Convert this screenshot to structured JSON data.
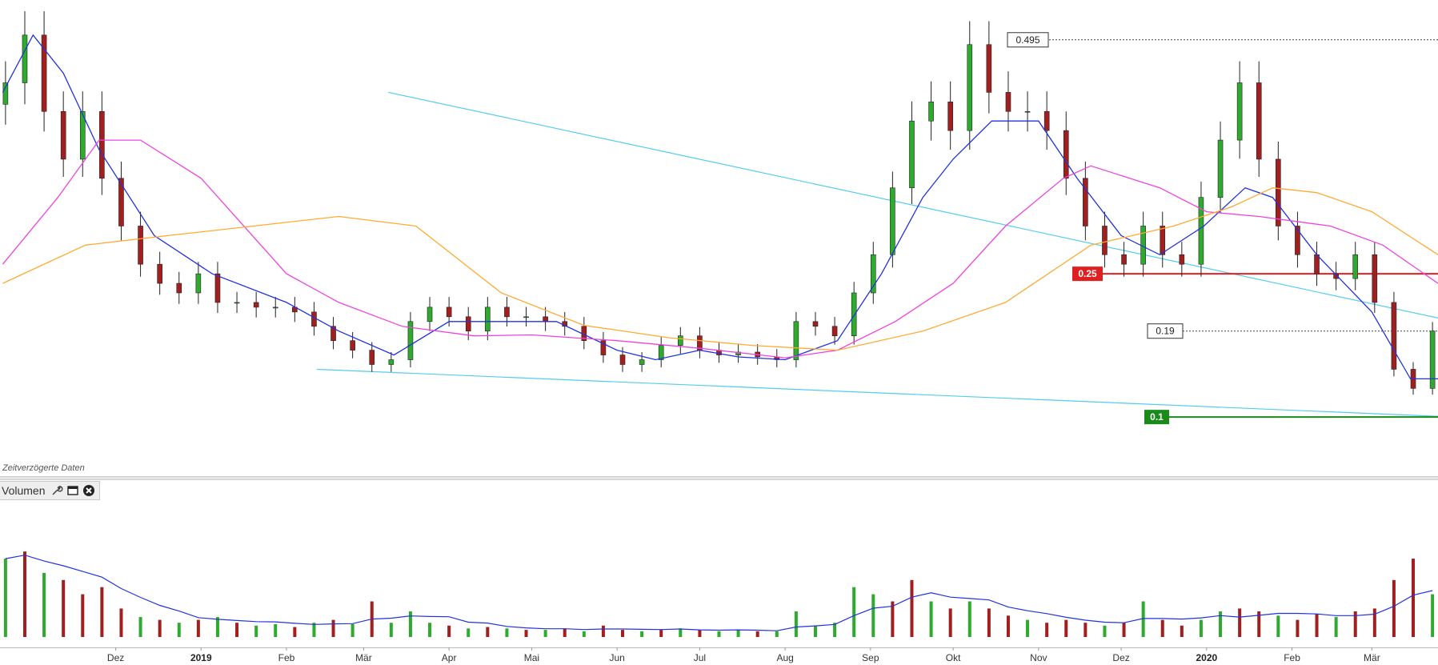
{
  "chart_data": [
    {
      "type": "candlestick",
      "panel": "price",
      "title": "",
      "xlabel": "",
      "ylabel": "",
      "x_range": [
        "2018-10-20",
        "2020-03-25"
      ],
      "ylim": [
        0.08,
        0.53
      ],
      "x_ticks": [
        "Dez",
        "2019",
        "Feb",
        "Mär",
        "Apr",
        "Mai",
        "Jun",
        "Jul",
        "Aug",
        "Sep",
        "Okt",
        "Nov",
        "Dez",
        "2020",
        "Feb",
        "Mär"
      ],
      "grid": false,
      "note": "Zeitverzögerte Daten",
      "price_labels": [
        {
          "value": 0.495,
          "label": "0.495",
          "style": "dotted",
          "color": "#555555"
        },
        {
          "value": 0.25,
          "label": "0.25",
          "style": "solid",
          "color": "#e02020"
        },
        {
          "value": 0.19,
          "label": "0.19",
          "style": "dotted",
          "color": "#555555"
        },
        {
          "value": 0.1,
          "label": "0.1",
          "style": "solid",
          "color": "#1a8a1a"
        }
      ],
      "trendlines": [
        {
          "from": {
            "date": "2019-03-10",
            "value": 0.44
          },
          "to": {
            "date": "2020-03-31",
            "value": 0.2
          },
          "color": "#55ccee",
          "label": ""
        },
        {
          "from": {
            "date": "2019-02-12",
            "value": 0.15
          },
          "to": {
            "date": "2020-03-31",
            "value": 0.1
          },
          "color": "#55ccee",
          "label": ""
        }
      ],
      "moving_averages": [
        {
          "name": "",
          "color": "#2233dd",
          "points": [
            [
              "2018-10-21",
              0.44
            ],
            [
              "2018-11-01",
              0.5
            ],
            [
              "2018-11-12",
              0.46
            ],
            [
              "2018-11-25",
              0.38
            ],
            [
              "2018-12-15",
              0.29
            ],
            [
              "2019-01-05",
              0.25
            ],
            [
              "2019-02-01",
              0.22
            ],
            [
              "2019-02-20",
              0.19
            ],
            [
              "2019-03-12",
              0.165
            ],
            [
              "2019-04-01",
              0.2
            ],
            [
              "2019-04-15",
              0.2
            ],
            [
              "2019-05-10",
              0.2
            ],
            [
              "2019-06-01",
              0.17
            ],
            [
              "2019-06-15",
              0.16
            ],
            [
              "2019-07-01",
              0.17
            ],
            [
              "2019-07-15",
              0.163
            ],
            [
              "2019-08-01",
              0.16
            ],
            [
              "2019-08-20",
              0.18
            ],
            [
              "2019-09-05",
              0.25
            ],
            [
              "2019-09-20",
              0.33
            ],
            [
              "2019-10-01",
              0.37
            ],
            [
              "2019-10-15",
              0.41
            ],
            [
              "2019-11-01",
              0.41
            ],
            [
              "2019-11-15",
              0.35
            ],
            [
              "2019-12-01",
              0.29
            ],
            [
              "2019-12-15",
              0.27
            ],
            [
              "2019-12-31",
              0.3
            ],
            [
              "2020-01-15",
              0.34
            ],
            [
              "2020-01-25",
              0.33
            ],
            [
              "2020-02-10",
              0.27
            ],
            [
              "2020-03-01",
              0.21
            ],
            [
              "2020-03-15",
              0.14
            ],
            [
              "2020-03-25",
              0.14
            ]
          ]
        },
        {
          "name": "",
          "color": "#ee44dd",
          "points": [
            [
              "2018-10-21",
              0.26
            ],
            [
              "2018-11-10",
              0.33
            ],
            [
              "2018-11-25",
              0.39
            ],
            [
              "2018-12-10",
              0.39
            ],
            [
              "2019-01-01",
              0.35
            ],
            [
              "2019-02-01",
              0.25
            ],
            [
              "2019-02-20",
              0.22
            ],
            [
              "2019-03-15",
              0.195
            ],
            [
              "2019-04-10",
              0.185
            ],
            [
              "2019-05-01",
              0.186
            ],
            [
              "2019-06-01",
              0.18
            ],
            [
              "2019-07-01",
              0.172
            ],
            [
              "2019-08-01",
              0.162
            ],
            [
              "2019-08-20",
              0.17
            ],
            [
              "2019-09-10",
              0.2
            ],
            [
              "2019-10-01",
              0.24
            ],
            [
              "2019-10-20",
              0.3
            ],
            [
              "2019-11-10",
              0.35
            ],
            [
              "2019-11-20",
              0.363
            ],
            [
              "2019-12-15",
              0.34
            ],
            [
              "2020-01-01",
              0.315
            ],
            [
              "2020-01-20",
              0.31
            ],
            [
              "2020-02-15",
              0.3
            ],
            [
              "2020-03-05",
              0.28
            ],
            [
              "2020-03-25",
              0.24
            ]
          ]
        },
        {
          "name": "",
          "color": "#ffaa33",
          "points": [
            [
              "2018-10-21",
              0.24
            ],
            [
              "2018-11-20",
              0.28
            ],
            [
              "2018-12-20",
              0.29
            ],
            [
              "2019-01-20",
              0.3
            ],
            [
              "2019-02-20",
              0.31
            ],
            [
              "2019-03-20",
              0.3
            ],
            [
              "2019-04-20",
              0.23
            ],
            [
              "2019-05-20",
              0.196
            ],
            [
              "2019-06-20",
              0.183
            ],
            [
              "2019-07-20",
              0.175
            ],
            [
              "2019-08-20",
              0.17
            ],
            [
              "2019-09-20",
              0.19
            ],
            [
              "2019-10-20",
              0.22
            ],
            [
              "2019-11-20",
              0.28
            ],
            [
              "2019-12-20",
              0.3
            ],
            [
              "2020-01-10",
              0.32
            ],
            [
              "2020-01-25",
              0.34
            ],
            [
              "2020-02-10",
              0.335
            ],
            [
              "2020-03-01",
              0.315
            ],
            [
              "2020-03-25",
              0.27
            ]
          ]
        }
      ],
      "candles_weekly_close": [
        [
          "2018-10-22",
          0.45
        ],
        [
          "2018-10-29",
          0.5
        ],
        [
          "2018-11-05",
          0.42
        ],
        [
          "2018-11-12",
          0.37
        ],
        [
          "2018-11-19",
          0.42
        ],
        [
          "2018-11-26",
          0.35
        ],
        [
          "2018-12-03",
          0.3
        ],
        [
          "2018-12-10",
          0.26
        ],
        [
          "2018-12-17",
          0.24
        ],
        [
          "2018-12-24",
          0.23
        ],
        [
          "2018-12-31",
          0.25
        ],
        [
          "2019-01-07",
          0.22
        ],
        [
          "2019-01-14",
          0.22
        ],
        [
          "2019-01-21",
          0.215
        ],
        [
          "2019-01-28",
          0.215
        ],
        [
          "2019-02-04",
          0.21
        ],
        [
          "2019-02-11",
          0.195
        ],
        [
          "2019-02-18",
          0.18
        ],
        [
          "2019-02-25",
          0.17
        ],
        [
          "2019-03-04",
          0.155
        ],
        [
          "2019-03-11",
          0.16
        ],
        [
          "2019-03-18",
          0.2
        ],
        [
          "2019-03-25",
          0.215
        ],
        [
          "2019-04-01",
          0.205
        ],
        [
          "2019-04-08",
          0.19
        ],
        [
          "2019-04-15",
          0.215
        ],
        [
          "2019-04-22",
          0.205
        ],
        [
          "2019-04-29",
          0.205
        ],
        [
          "2019-05-06",
          0.2
        ],
        [
          "2019-05-13",
          0.195
        ],
        [
          "2019-05-20",
          0.18
        ],
        [
          "2019-05-27",
          0.165
        ],
        [
          "2019-06-03",
          0.155
        ],
        [
          "2019-06-10",
          0.16
        ],
        [
          "2019-06-17",
          0.175
        ],
        [
          "2019-06-24",
          0.185
        ],
        [
          "2019-07-01",
          0.17
        ],
        [
          "2019-07-08",
          0.165
        ],
        [
          "2019-07-15",
          0.168
        ],
        [
          "2019-07-22",
          0.163
        ],
        [
          "2019-07-29",
          0.16
        ],
        [
          "2019-08-05",
          0.2
        ],
        [
          "2019-08-12",
          0.195
        ],
        [
          "2019-08-19",
          0.185
        ],
        [
          "2019-08-26",
          0.23
        ],
        [
          "2019-09-02",
          0.27
        ],
        [
          "2019-09-09",
          0.34
        ],
        [
          "2019-09-16",
          0.41
        ],
        [
          "2019-09-23",
          0.43
        ],
        [
          "2019-09-30",
          0.4
        ],
        [
          "2019-10-07",
          0.49
        ],
        [
          "2019-10-14",
          0.44
        ],
        [
          "2019-10-21",
          0.42
        ],
        [
          "2019-10-28",
          0.42
        ],
        [
          "2019-11-04",
          0.4
        ],
        [
          "2019-11-11",
          0.35
        ],
        [
          "2019-11-18",
          0.3
        ],
        [
          "2019-11-25",
          0.27
        ],
        [
          "2019-12-02",
          0.26
        ],
        [
          "2019-12-09",
          0.3
        ],
        [
          "2019-12-16",
          0.27
        ],
        [
          "2019-12-23",
          0.26
        ],
        [
          "2019-12-30",
          0.33
        ],
        [
          "2020-01-06",
          0.39
        ],
        [
          "2020-01-13",
          0.45
        ],
        [
          "2020-01-20",
          0.37
        ],
        [
          "2020-01-27",
          0.3
        ],
        [
          "2020-02-03",
          0.27
        ],
        [
          "2020-02-10",
          0.25
        ],
        [
          "2020-02-17",
          0.245
        ],
        [
          "2020-02-24",
          0.27
        ],
        [
          "2020-03-02",
          0.22
        ],
        [
          "2020-03-09",
          0.15
        ],
        [
          "2020-03-16",
          0.13
        ],
        [
          "2020-03-23",
          0.19
        ]
      ]
    },
    {
      "type": "bar",
      "panel": "volume",
      "title": "Volumen",
      "xlabel": "",
      "ylabel": "",
      "ylim": [
        0,
        100
      ],
      "x_range": [
        "2018-10-20",
        "2020-03-25"
      ],
      "volume_ma_color": "#2233dd",
      "colors": {
        "up": "#2eaa2e",
        "down": "#a21f1f"
      },
      "weekly_volume": [
        [
          "2018-10-22",
          55,
          "up"
        ],
        [
          "2018-10-29",
          60,
          "down"
        ],
        [
          "2018-11-05",
          45,
          "up"
        ],
        [
          "2018-11-12",
          40,
          "down"
        ],
        [
          "2018-11-19",
          30,
          "down"
        ],
        [
          "2018-11-26",
          35,
          "down"
        ],
        [
          "2018-12-03",
          20,
          "down"
        ],
        [
          "2018-12-10",
          14,
          "up"
        ],
        [
          "2018-12-17",
          12,
          "down"
        ],
        [
          "2018-12-24",
          10,
          "up"
        ],
        [
          "2018-12-31",
          12,
          "down"
        ],
        [
          "2019-01-07",
          14,
          "up"
        ],
        [
          "2019-01-14",
          10,
          "down"
        ],
        [
          "2019-01-21",
          8,
          "up"
        ],
        [
          "2019-01-28",
          9,
          "up"
        ],
        [
          "2019-02-04",
          7,
          "down"
        ],
        [
          "2019-02-11",
          10,
          "up"
        ],
        [
          "2019-02-18",
          12,
          "down"
        ],
        [
          "2019-02-25",
          9,
          "up"
        ],
        [
          "2019-03-04",
          25,
          "down"
        ],
        [
          "2019-03-11",
          10,
          "up"
        ],
        [
          "2019-03-18",
          18,
          "up"
        ],
        [
          "2019-03-25",
          10,
          "up"
        ],
        [
          "2019-04-01",
          8,
          "down"
        ],
        [
          "2019-04-08",
          6,
          "up"
        ],
        [
          "2019-04-15",
          7,
          "down"
        ],
        [
          "2019-04-22",
          6,
          "up"
        ],
        [
          "2019-04-29",
          5,
          "down"
        ],
        [
          "2019-05-06",
          5,
          "up"
        ],
        [
          "2019-05-13",
          6,
          "down"
        ],
        [
          "2019-05-20",
          4,
          "up"
        ],
        [
          "2019-05-27",
          8,
          "down"
        ],
        [
          "2019-06-03",
          5,
          "down"
        ],
        [
          "2019-06-10",
          4,
          "up"
        ],
        [
          "2019-06-17",
          5,
          "down"
        ],
        [
          "2019-06-24",
          6,
          "up"
        ],
        [
          "2019-07-01",
          5,
          "down"
        ],
        [
          "2019-07-08",
          4,
          "up"
        ],
        [
          "2019-07-15",
          5,
          "up"
        ],
        [
          "2019-07-22",
          4,
          "down"
        ],
        [
          "2019-07-29",
          4,
          "up"
        ],
        [
          "2019-08-05",
          18,
          "up"
        ],
        [
          "2019-08-12",
          8,
          "up"
        ],
        [
          "2019-08-19",
          10,
          "up"
        ],
        [
          "2019-08-26",
          35,
          "up"
        ],
        [
          "2019-09-02",
          30,
          "up"
        ],
        [
          "2019-09-09",
          25,
          "down"
        ],
        [
          "2019-09-16",
          40,
          "down"
        ],
        [
          "2019-09-23",
          25,
          "up"
        ],
        [
          "2019-09-30",
          20,
          "down"
        ],
        [
          "2019-10-07",
          25,
          "up"
        ],
        [
          "2019-10-14",
          20,
          "down"
        ],
        [
          "2019-10-21",
          15,
          "down"
        ],
        [
          "2019-10-28",
          12,
          "up"
        ],
        [
          "2019-11-04",
          10,
          "down"
        ],
        [
          "2019-11-11",
          12,
          "down"
        ],
        [
          "2019-11-18",
          10,
          "down"
        ],
        [
          "2019-11-25",
          8,
          "up"
        ],
        [
          "2019-12-02",
          10,
          "down"
        ],
        [
          "2019-12-09",
          25,
          "up"
        ],
        [
          "2019-12-16",
          12,
          "down"
        ],
        [
          "2019-12-23",
          8,
          "down"
        ],
        [
          "2019-12-30",
          12,
          "up"
        ],
        [
          "2020-01-06",
          18,
          "up"
        ],
        [
          "2020-01-13",
          20,
          "down"
        ],
        [
          "2020-01-20",
          18,
          "down"
        ],
        [
          "2020-01-27",
          15,
          "up"
        ],
        [
          "2020-02-03",
          12,
          "down"
        ],
        [
          "2020-02-10",
          16,
          "down"
        ],
        [
          "2020-02-17",
          14,
          "up"
        ],
        [
          "2020-02-24",
          18,
          "down"
        ],
        [
          "2020-03-02",
          20,
          "down"
        ],
        [
          "2020-03-09",
          40,
          "down"
        ],
        [
          "2020-03-16",
          55,
          "down"
        ],
        [
          "2020-03-23",
          30,
          "up"
        ]
      ]
    }
  ],
  "ui": {
    "delay_label": "Zeitverzögerte Daten",
    "volume_header": {
      "label": "Volumen"
    },
    "icons": [
      "wrench-icon",
      "window-icon",
      "close-icon"
    ]
  }
}
